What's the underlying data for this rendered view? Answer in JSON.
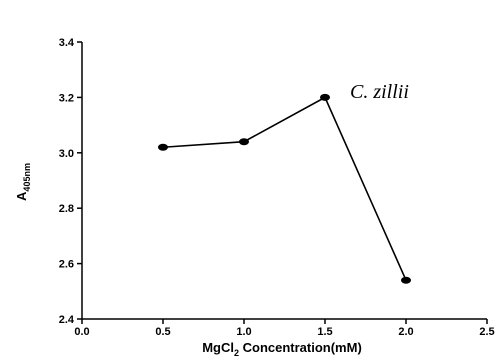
{
  "chart_data": {
    "type": "line",
    "x": [
      0.5,
      1.0,
      1.5,
      2.0
    ],
    "series": [
      {
        "values": [
          3.02,
          3.04,
          3.2,
          2.54
        ]
      }
    ],
    "xlim": [
      0.0,
      2.5
    ],
    "ylim": [
      2.4,
      3.4
    ],
    "xticks": [
      "0.0",
      "0.5",
      "1.0",
      "1.5",
      "2.0",
      "2.5"
    ],
    "yticks": [
      "2.4",
      "2.6",
      "2.8",
      "3.0",
      "3.2",
      "3.4"
    ],
    "xlabel": {
      "prefix": "MgCl",
      "subscript": "2",
      "suffix": " Concentration(mM)"
    },
    "ylabel": {
      "prefix": "A",
      "subscript": "405nm"
    },
    "annotation": "C. zillii",
    "grid": false,
    "legend": "none",
    "line_color": "#000000",
    "marker_color": "#000000"
  }
}
